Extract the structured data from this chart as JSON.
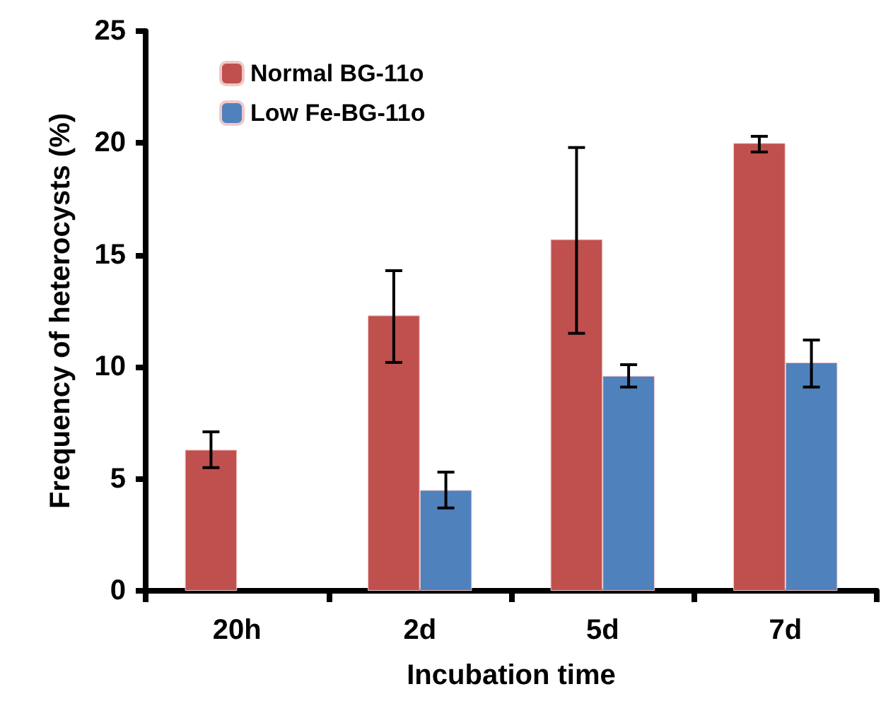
{
  "chart_data": {
    "type": "bar",
    "xlabel": "Incubation time",
    "ylabel": "Frequency of heterocysts (%)",
    "categories": [
      "20h",
      "2d",
      "5d",
      "7d"
    ],
    "series": [
      {
        "name": "Normal BG-11o",
        "color": "#c0504d",
        "values": [
          6.3,
          12.3,
          15.7,
          20.0
        ],
        "errors": [
          [
            5.5,
            7.1
          ],
          [
            10.2,
            14.3
          ],
          [
            11.5,
            19.8
          ],
          [
            19.6,
            20.3
          ]
        ]
      },
      {
        "name": "Low Fe-BG-11o",
        "color": "#4f81bd",
        "values": [
          null,
          4.5,
          9.6,
          10.2
        ],
        "errors": [
          null,
          [
            3.7,
            5.3
          ],
          [
            9.1,
            10.1
          ],
          [
            9.1,
            11.2
          ]
        ]
      }
    ],
    "ylim": [
      0,
      25
    ],
    "yticks": [
      0,
      5,
      10,
      15,
      20,
      25
    ],
    "grid": false,
    "legend": "top left"
  }
}
